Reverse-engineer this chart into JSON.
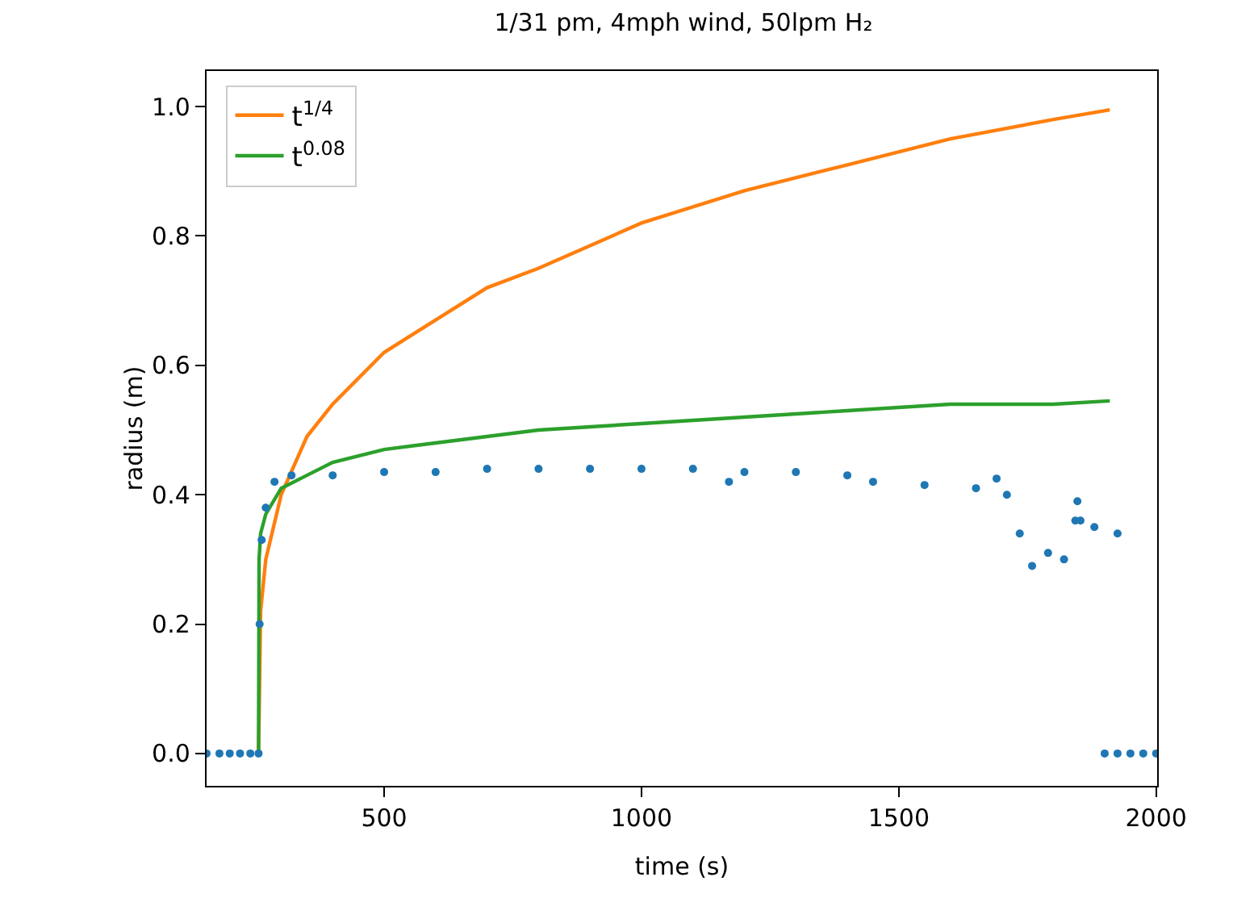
{
  "chart_data": {
    "type": "line",
    "title": "1/31 pm, 4mph wind, 50lpm H₂",
    "xlabel": "time (s)",
    "ylabel": "radius (m)",
    "xlim": [
      155,
      2002
    ],
    "ylim": [
      -0.05,
      1.055
    ],
    "xticks": [
      500,
      1000,
      1500,
      2000
    ],
    "yticks": [
      {
        "value": 0,
        "label": "0.0"
      },
      {
        "value": 0.2,
        "label": "0.2"
      },
      {
        "value": 0.4,
        "label": "0.4"
      },
      {
        "value": 0.6,
        "label": "0.6"
      },
      {
        "value": 0.8,
        "label": "0.8"
      },
      {
        "value": 1,
        "label": "1.0"
      }
    ],
    "grid": false,
    "legend": "top left",
    "series": [
      {
        "type": "scatter",
        "marker": "circle",
        "color": "#1f77b4",
        "x": [
          155,
          180,
          200,
          220,
          240,
          256,
          258,
          262,
          270,
          287,
          320,
          400,
          500,
          600,
          700,
          800,
          900,
          1000,
          1100,
          1170,
          1200,
          1300,
          1400,
          1450,
          1550,
          1650,
          1690,
          1710,
          1735,
          1759,
          1790,
          1821,
          1843,
          1847,
          1853,
          1880,
          1925,
          1900,
          1925,
          1950,
          1975,
          2000
        ],
        "values": [
          0,
          0,
          0,
          0,
          0,
          0,
          0.2,
          0.33,
          0.38,
          0.42,
          0.43,
          0.43,
          0.435,
          0.435,
          0.44,
          0.44,
          0.44,
          0.44,
          0.44,
          0.42,
          0.435,
          0.435,
          0.43,
          0.42,
          0.415,
          0.41,
          0.425,
          0.4,
          0.34,
          0.29,
          0.31,
          0.3,
          0.36,
          0.39,
          0.36,
          0.35,
          0.34,
          0,
          0,
          0,
          0,
          0
        ]
      },
      {
        "name": "t$^{1/4}$",
        "color": "#ff7f0e",
        "x": [
          256,
          260,
          270,
          300,
          350,
          400,
          500,
          600,
          700,
          800,
          1000,
          1200,
          1400,
          1600,
          1800,
          1910
        ],
        "values": [
          0,
          0.22,
          0.3,
          0.4,
          0.49,
          0.54,
          0.62,
          0.67,
          0.72,
          0.75,
          0.82,
          0.87,
          0.91,
          0.95,
          0.98,
          0.995
        ]
      },
      {
        "name": "t$^{0.08}$",
        "color": "#2ca02c",
        "x": [
          256,
          257,
          260,
          270,
          300,
          350,
          400,
          500,
          600,
          800,
          1000,
          1200,
          1400,
          1600,
          1800,
          1910
        ],
        "values": [
          0,
          0.3,
          0.34,
          0.37,
          0.41,
          0.43,
          0.45,
          0.47,
          0.48,
          0.5,
          0.51,
          0.52,
          0.53,
          0.54,
          0.54,
          0.545
        ]
      }
    ]
  }
}
